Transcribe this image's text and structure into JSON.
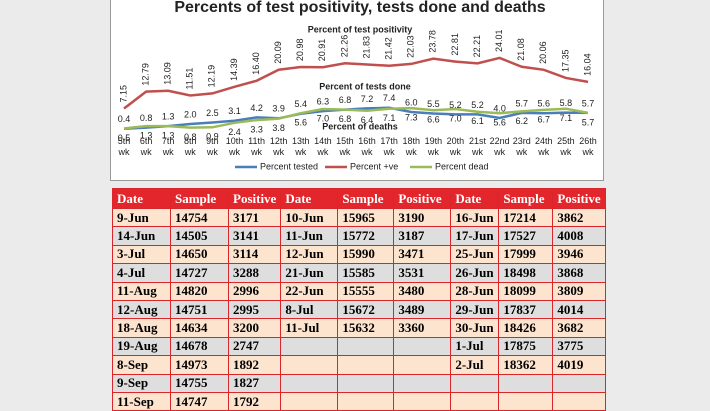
{
  "chart_data": {
    "type": "line",
    "title": "Percents of test positivity, tests done and deaths",
    "annotations": [
      "Percent of test positivity",
      "Percent of tests done",
      "Percent of deaths"
    ],
    "categories": [
      "5th wk",
      "6th wk",
      "7th wk",
      "8th wk",
      "9th wk",
      "10th wk",
      "11th wk",
      "12th wk",
      "13th wk",
      "14th wk",
      "15th wk",
      "16th wk",
      "17th wk",
      "18th wk",
      "19th wk",
      "20th wk",
      "21st wk",
      "22nd wk",
      "23rd wk",
      "24th wk",
      "25th wk",
      "26th wk"
    ],
    "ylim": [
      0,
      26
    ],
    "legend": "bottom",
    "series": [
      {
        "name": "Percent tested",
        "color": "#4a7ebb",
        "label_side": "above",
        "values": [
          0.4,
          0.8,
          1.3,
          2.0,
          2.5,
          3.1,
          4.2,
          3.9,
          5.4,
          6.3,
          6.8,
          7.2,
          7.4,
          6.0,
          5.5,
          5.2,
          5.2,
          4.0,
          5.7,
          5.6,
          5.8,
          5.7
        ],
        "value_labels": [
          "0.4",
          "0.8",
          "1.3",
          "2.0",
          "2.5",
          "3.1",
          "4.2",
          "3.9",
          "5.4",
          "6.3",
          "6.8",
          "7.2",
          "7.4",
          "6.0",
          "5.5",
          "5.2",
          "5.2",
          "4.0",
          "5.7",
          "5.6",
          "5.8",
          "5.7"
        ]
      },
      {
        "name": "Percent +ve",
        "color": "#c0504d",
        "label_side": "rotated",
        "values": [
          7.15,
          12.79,
          13.09,
          11.51,
          12.19,
          14.39,
          16.4,
          20.09,
          20.98,
          20.91,
          22.26,
          21.83,
          21.42,
          22.03,
          23.78,
          22.81,
          22.21,
          24.01,
          21.08,
          20.06,
          17.35,
          16.04
        ],
        "value_labels": [
          "7.15",
          "12.79",
          "13.09",
          "11.51",
          "12.19",
          "14.39",
          "16.40",
          "20.09",
          "20.98",
          "20.91",
          "22.26",
          "21.83",
          "21.42",
          "22.03",
          "23.78",
          "22.81",
          "22.21",
          "24.01",
          "21.08",
          "20.06",
          "17.35",
          "16.04"
        ]
      },
      {
        "name": "Percent dead",
        "color": "#9bbb59",
        "label_side": "below",
        "values": [
          0.5,
          1.3,
          1.3,
          0.8,
          0.9,
          2.4,
          3.3,
          3.8,
          5.6,
          7.0,
          6.8,
          6.4,
          7.1,
          7.3,
          6.6,
          7.0,
          6.1,
          5.6,
          6.2,
          6.7,
          7.1,
          5.7
        ],
        "value_labels": [
          "0.5",
          "1.3",
          "1.3",
          "0.8",
          "0.9",
          "2.4",
          "3.3",
          "3.8",
          "5.6",
          "7.0",
          "6.8",
          "6.4",
          "7.1",
          "7.3",
          "6.6",
          "7.0",
          "6.1",
          "5.6",
          "6.2",
          "6.7",
          "7.1",
          "5.7"
        ]
      }
    ]
  },
  "table": {
    "header": [
      "Date",
      "Sample",
      "Positive",
      "Date",
      "Sample",
      "Positive",
      "Date",
      "Sample",
      "Positive"
    ],
    "rows": [
      [
        "9-Jun",
        14754,
        3171,
        "10-Jun",
        15965,
        3190,
        "16-Jun",
        17214,
        3862
      ],
      [
        "14-Jun",
        14505,
        3141,
        "11-Jun",
        15772,
        3187,
        "17-Jun",
        17527,
        4008
      ],
      [
        "3-Jul",
        14650,
        3114,
        "12-Jun",
        15990,
        3471,
        "25-Jun",
        17999,
        3946
      ],
      [
        "4-Jul",
        14727,
        3288,
        "21-Jun",
        15585,
        3531,
        "26-Jun",
        18498,
        3868
      ],
      [
        "11-Aug",
        14820,
        2996,
        "22-Jun",
        15555,
        3480,
        "28-Jun",
        18099,
        3809
      ],
      [
        "12-Aug",
        14751,
        2995,
        "8-Jul",
        15672,
        3489,
        "29-Jun",
        17837,
        4014
      ],
      [
        "18-Aug",
        14634,
        3200,
        "11-Jul",
        15632,
        3360,
        "30-Jun",
        18426,
        3682
      ],
      [
        "19-Aug",
        14678,
        2747,
        null,
        null,
        null,
        "1-Jul",
        17875,
        3775
      ],
      [
        "8-Sep",
        14973,
        1892,
        null,
        null,
        null,
        "2-Jul",
        18362,
        4019
      ],
      [
        "9-Sep",
        14755,
        1827,
        null,
        null,
        null,
        null,
        null,
        null
      ],
      [
        "11-Sep",
        14747,
        1792,
        null,
        null,
        null,
        null,
        null,
        null
      ]
    ]
  }
}
